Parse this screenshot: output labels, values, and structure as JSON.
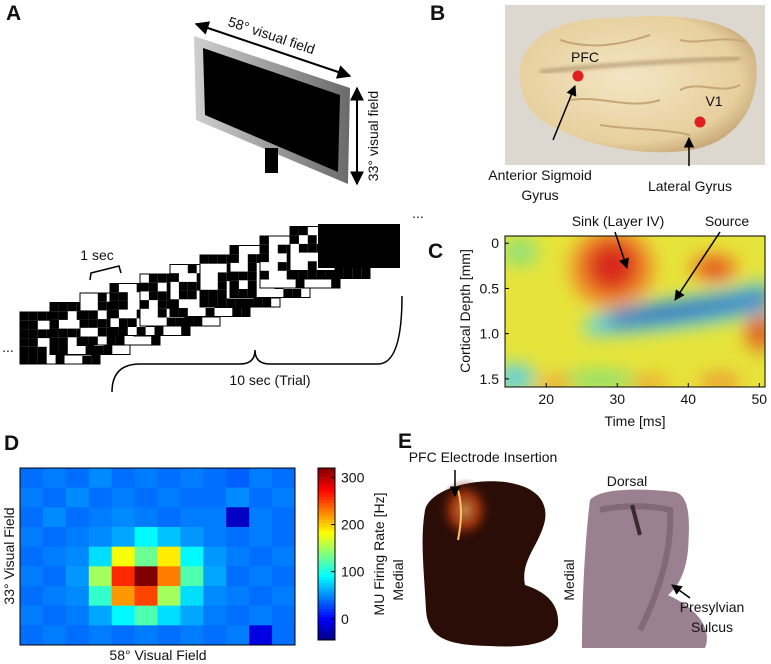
{
  "figure": {
    "A": {
      "letter": "A",
      "horizontal_field": "58° visual field",
      "vertical_field": "33° visual field",
      "frame_duration": "1 sec",
      "trial_duration": "10 sec (Trial)",
      "ellipsis": "..."
    },
    "B": {
      "letter": "B",
      "sites": [
        "PFC",
        "V1"
      ],
      "annotations": [
        [
          "Anterior Sigmoid",
          "Gyrus"
        ],
        [
          "Lateral Gyrus"
        ]
      ]
    },
    "E": {
      "letter": "E",
      "insertion": "PFC Electrode Insertion",
      "dorsal": "Dorsal",
      "medial": "Medial",
      "sulcus": [
        "Presylvian",
        "Sulcus"
      ]
    }
  },
  "chart_data": [
    {
      "type": "csd-map",
      "panel": "C",
      "xlabel": "Time [ms]",
      "ylabel": "Cortical Depth [mm]",
      "xlim": [
        14.2,
        50.8
      ],
      "ylim": [
        1.59,
        -0.08
      ],
      "xticks": [
        20,
        30,
        40,
        50
      ],
      "yticks": [
        0,
        0.5,
        {
          "value": 1,
          "label": "1.0"
        },
        1.5
      ],
      "annotations": [
        "Sink (Layer IV)",
        "Source"
      ]
    },
    {
      "type": "heatmap",
      "panel": "D",
      "xlabel": "58° Visual Field",
      "ylabel": "33° Visual Field",
      "colormap": "jet",
      "clim": [
        -45,
        320
      ],
      "colorbar": {
        "label": "MU Firing Rate [Hz]",
        "ticks": [
          0,
          100,
          200,
          300
        ]
      },
      "values": [
        [
          40,
          45,
          40,
          50,
          40,
          45,
          40,
          45,
          40,
          35,
          45,
          40
        ],
        [
          45,
          40,
          50,
          40,
          45,
          40,
          45,
          40,
          40,
          50,
          40,
          45
        ],
        [
          40,
          50,
          40,
          45,
          50,
          45,
          40,
          45,
          45,
          -20,
          45,
          40
        ],
        [
          45,
          40,
          45,
          50,
          60,
          90,
          70,
          55,
          45,
          40,
          45,
          40
        ],
        [
          40,
          45,
          50,
          80,
          180,
          130,
          190,
          90,
          55,
          45,
          40,
          45
        ],
        [
          45,
          40,
          55,
          150,
          260,
          320,
          230,
          120,
          60,
          40,
          45,
          40
        ],
        [
          40,
          45,
          50,
          110,
          220,
          250,
          150,
          80,
          50,
          45,
          40,
          45
        ],
        [
          45,
          40,
          45,
          60,
          90,
          120,
          80,
          60,
          45,
          40,
          45,
          40
        ],
        [
          40,
          45,
          40,
          45,
          40,
          45,
          40,
          45,
          40,
          45,
          -10,
          40
        ]
      ]
    }
  ]
}
